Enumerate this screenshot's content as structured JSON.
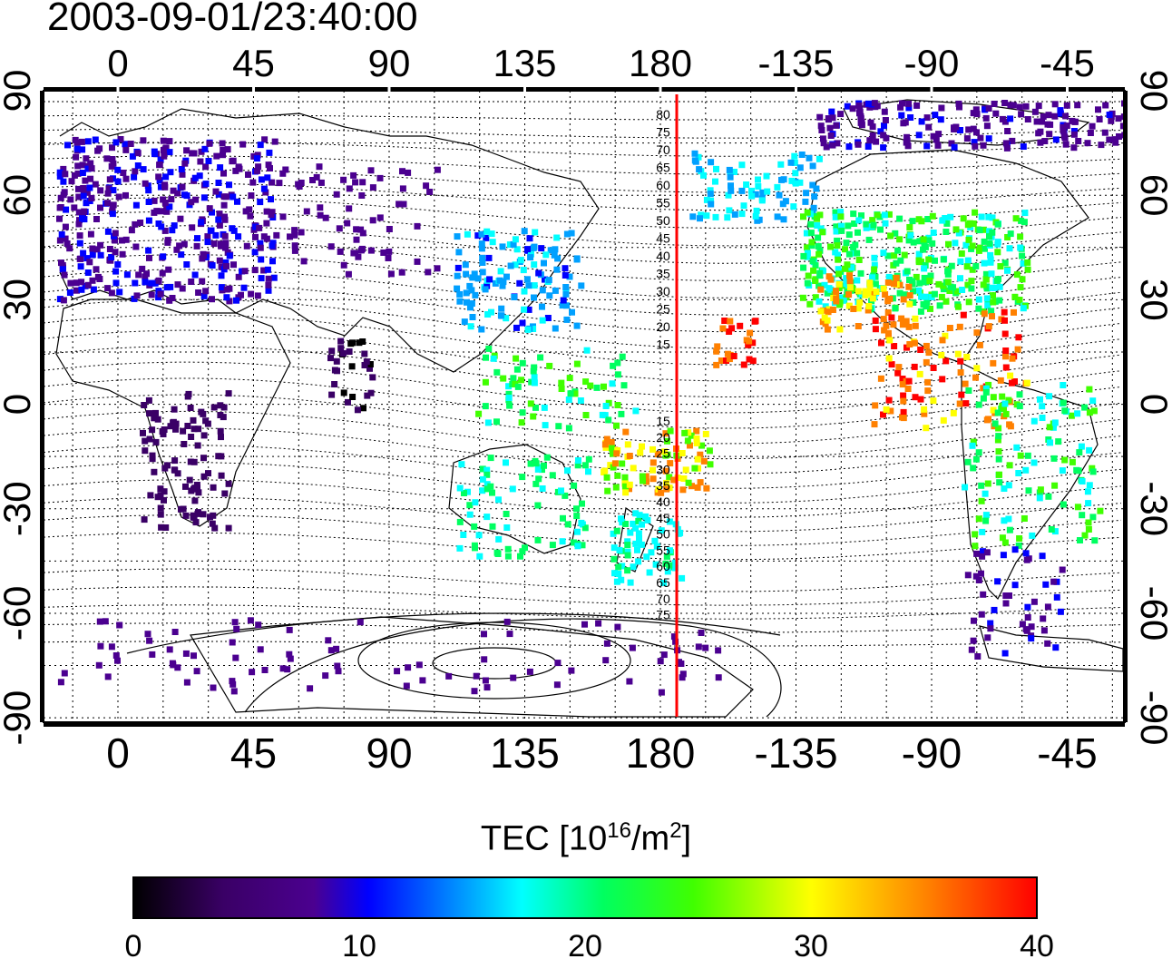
{
  "timestamp": "2003-09-01/23:40:00",
  "map": {
    "x_ticks": [
      "0",
      "45",
      "90",
      "135",
      "180",
      "-135",
      "-90",
      "-45"
    ],
    "y_ticks": [
      "90",
      "60",
      "30",
      "0",
      "-30",
      "-60",
      "-90"
    ],
    "contour_labels_north": [
      "80",
      "75",
      "70",
      "65",
      "60",
      "55",
      "50",
      "45",
      "40",
      "35",
      "30",
      "25",
      "20",
      "15"
    ],
    "contour_labels_south": [
      "15",
      "20",
      "25",
      "30",
      "35",
      "40",
      "45",
      "50",
      "55",
      "60",
      "65",
      "70",
      "75"
    ],
    "meridian_marker_color": "#ff0000",
    "grid": true
  },
  "colorbar": {
    "title_prefix": "TEC  [10",
    "title_exp1": "16",
    "title_mid": "/m",
    "title_exp2": "2",
    "title_suffix": "]",
    "ticks": [
      "0",
      "10",
      "20",
      "30",
      "40"
    ],
    "range": [
      0,
      40
    ],
    "colormap": [
      "#000000",
      "#3a0066",
      "#4b0090",
      "#0000ff",
      "#00a0ff",
      "#00ffff",
      "#00ff60",
      "#40ff00",
      "#ffff00",
      "#ff8000",
      "#ff0000"
    ]
  }
}
